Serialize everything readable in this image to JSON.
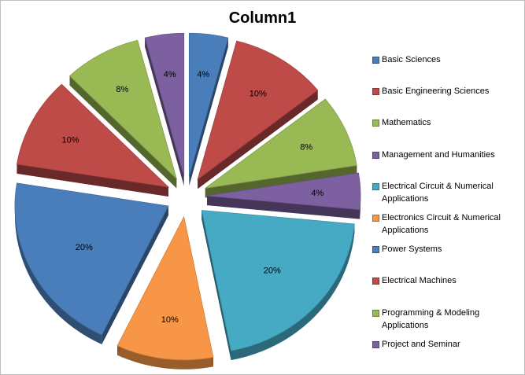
{
  "chart_data": {
    "type": "pie",
    "title": "Column1",
    "style": "exploded-3d",
    "categories": [
      "Basic Sciences",
      "Basic Engineering Sciences",
      "Mathematics",
      "Management and Humanities",
      "Electrical Circuit & Numerical Applications",
      "Electronics Circuit & Numerical Applications",
      "Power Systems",
      "Electrical Machines",
      "Programming & Modeling Applications",
      "Project and Seminar"
    ],
    "values": [
      4,
      10,
      8,
      4,
      20,
      10,
      20,
      10,
      8,
      4
    ],
    "data_labels": [
      "4%",
      "10%",
      "8%",
      "4%",
      "20%",
      "10%",
      "20%",
      "10%",
      "8%",
      "4%"
    ],
    "colors": [
      "#4a7ebb",
      "#be4b48",
      "#98b954",
      "#7d60a0",
      "#46aac5",
      "#f79646",
      "#4a7ebb",
      "#be4b48",
      "#98b954",
      "#7d60a0"
    ],
    "legend_position": "right",
    "grid": false
  }
}
